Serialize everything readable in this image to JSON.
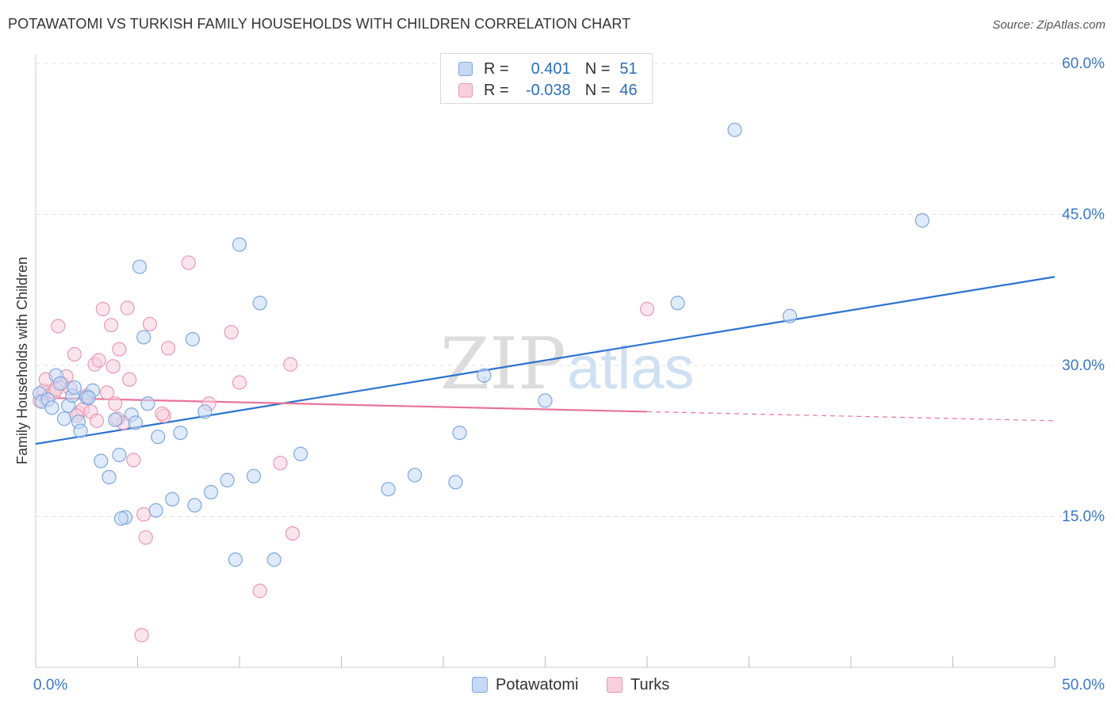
{
  "title": "POTAWATOMI VS TURKISH FAMILY HOUSEHOLDS WITH CHILDREN CORRELATION CHART",
  "source": "Source: ZipAtlas.com",
  "watermark": {
    "zip": "ZIP",
    "atlas": "atlas"
  },
  "legend": {
    "r_label": "R =",
    "n_label": "N =",
    "rows": [
      {
        "r": "0.401",
        "n": "51"
      },
      {
        "r": "-0.038",
        "n": "46"
      }
    ]
  },
  "colors": {
    "blue_fill": "#c5d9f5",
    "blue_stroke": "#7fa8e0",
    "blue_line": "#2a72d0",
    "pink_fill": "#f8d0dc",
    "pink_stroke": "#eb98b3",
    "pink_line": "#e8739a",
    "tick_label": "#3a78c9",
    "grid": "#e0e0e0"
  },
  "chart_data": {
    "type": "scatter",
    "title": "POTAWATOMI VS TURKISH FAMILY HOUSEHOLDS WITH CHILDREN CORRELATION CHART",
    "xlabel": "",
    "ylabel": "Family Households with Children",
    "xlim": [
      0,
      50
    ],
    "ylim": [
      0,
      60
    ],
    "x_tick_labels": [
      "0.0%",
      "50.0%"
    ],
    "y_tick_labels": [
      "15.0%",
      "30.0%",
      "45.0%",
      "60.0%"
    ],
    "y_ticks": [
      15,
      30,
      45,
      60
    ],
    "grid": true,
    "legend_position": "top-center",
    "series": [
      {
        "name": "Potawatomi",
        "color": "#7fa8e0",
        "points": [
          [
            0.2,
            27.2
          ],
          [
            0.3,
            26.4
          ],
          [
            0.6,
            26.6
          ],
          [
            0.8,
            25.8
          ],
          [
            1.0,
            29.0
          ],
          [
            1.2,
            28.2
          ],
          [
            1.4,
            24.7
          ],
          [
            1.6,
            26.0
          ],
          [
            1.8,
            27.0
          ],
          [
            1.9,
            27.8
          ],
          [
            2.1,
            24.4
          ],
          [
            2.2,
            23.5
          ],
          [
            2.5,
            26.8
          ],
          [
            2.8,
            27.5
          ],
          [
            3.2,
            20.5
          ],
          [
            3.6,
            18.9
          ],
          [
            3.9,
            24.6
          ],
          [
            4.1,
            21.1
          ],
          [
            4.4,
            14.9
          ],
          [
            4.7,
            25.1
          ],
          [
            4.9,
            24.3
          ],
          [
            5.1,
            39.8
          ],
          [
            5.3,
            32.8
          ],
          [
            5.5,
            26.2
          ],
          [
            5.9,
            15.6
          ],
          [
            6.0,
            22.9
          ],
          [
            6.7,
            16.7
          ],
          [
            7.1,
            23.3
          ],
          [
            7.7,
            32.6
          ],
          [
            7.8,
            16.1
          ],
          [
            8.3,
            25.4
          ],
          [
            8.6,
            17.4
          ],
          [
            9.4,
            18.6
          ],
          [
            9.8,
            10.7
          ],
          [
            10.0,
            42.0
          ],
          [
            10.7,
            19.0
          ],
          [
            11.0,
            36.2
          ],
          [
            11.7,
            10.7
          ],
          [
            13.0,
            21.2
          ],
          [
            17.3,
            17.7
          ],
          [
            18.6,
            19.1
          ],
          [
            20.6,
            18.4
          ],
          [
            20.8,
            23.3
          ],
          [
            22.0,
            29.0
          ],
          [
            25.0,
            26.5
          ],
          [
            31.5,
            36.2
          ],
          [
            34.3,
            53.4
          ],
          [
            37.0,
            34.9
          ],
          [
            43.5,
            44.4
          ],
          [
            4.2,
            14.8
          ],
          [
            2.6,
            26.8
          ]
        ],
        "trend": [
          [
            0,
            22.2
          ],
          [
            50,
            38.8
          ]
        ]
      },
      {
        "name": "Turks",
        "color": "#eb98b3",
        "points": [
          [
            0.2,
            26.5
          ],
          [
            0.4,
            27.5
          ],
          [
            0.5,
            28.6
          ],
          [
            0.7,
            27.1
          ],
          [
            0.9,
            27.3
          ],
          [
            1.1,
            33.9
          ],
          [
            1.3,
            28.2
          ],
          [
            1.5,
            28.9
          ],
          [
            1.7,
            27.7
          ],
          [
            1.9,
            31.1
          ],
          [
            2.1,
            25.3
          ],
          [
            2.3,
            25.6
          ],
          [
            2.5,
            27.0
          ],
          [
            2.7,
            25.4
          ],
          [
            2.9,
            30.1
          ],
          [
            3.0,
            24.5
          ],
          [
            3.1,
            30.5
          ],
          [
            3.3,
            35.6
          ],
          [
            3.5,
            27.3
          ],
          [
            3.7,
            34.0
          ],
          [
            3.8,
            29.9
          ],
          [
            3.9,
            26.2
          ],
          [
            4.1,
            31.6
          ],
          [
            4.3,
            24.3
          ],
          [
            4.5,
            35.7
          ],
          [
            4.6,
            28.6
          ],
          [
            4.8,
            20.6
          ],
          [
            5.3,
            15.2
          ],
          [
            5.4,
            12.9
          ],
          [
            5.6,
            34.1
          ],
          [
            6.3,
            25.0
          ],
          [
            6.5,
            31.7
          ],
          [
            7.5,
            40.2
          ],
          [
            8.5,
            26.2
          ],
          [
            9.6,
            33.3
          ],
          [
            10.0,
            28.3
          ],
          [
            11.0,
            7.6
          ],
          [
            12.0,
            20.3
          ],
          [
            12.5,
            30.1
          ],
          [
            12.6,
            13.3
          ],
          [
            5.2,
            3.2
          ],
          [
            30.0,
            35.6
          ],
          [
            1.0,
            27.6
          ],
          [
            2.0,
            25.0
          ],
          [
            4.0,
            24.7
          ],
          [
            6.2,
            25.2
          ]
        ],
        "trend": [
          [
            0,
            26.8
          ],
          [
            30,
            25.4
          ]
        ],
        "trend_dashed": [
          [
            30,
            25.4
          ],
          [
            50,
            24.5
          ]
        ]
      }
    ]
  },
  "bottom_legend": [
    "Potawatomi",
    "Turks"
  ]
}
